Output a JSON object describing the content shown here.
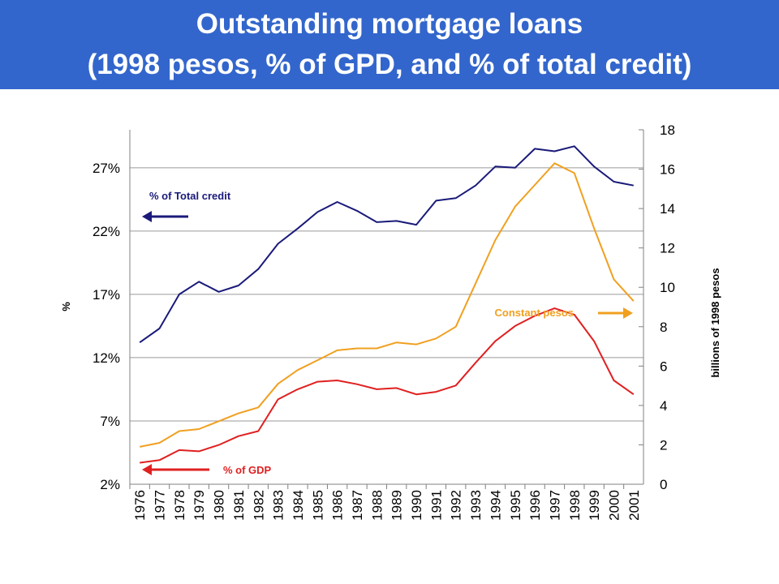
{
  "title": {
    "line1": "Outstanding mortgage loans",
    "line2": "(1998 pesos, % of GPD, and % of total credit)"
  },
  "chart_data": {
    "type": "line",
    "categories": [
      "1976",
      "1977",
      "1978",
      "1979",
      "1980",
      "1981",
      "1982",
      "1983",
      "1984",
      "1985",
      "1986",
      "1987",
      "1988",
      "1989",
      "1990",
      "1991",
      "1992",
      "1993",
      "1994",
      "1995",
      "1996",
      "1997",
      "1998",
      "1999",
      "2000",
      "2001"
    ],
    "y_left": {
      "label": "%",
      "range": [
        2,
        30
      ],
      "ticks": [
        2,
        7,
        12,
        17,
        22,
        27
      ],
      "tick_labels": [
        "2%",
        "7%",
        "12%",
        "17%",
        "22%",
        "27%"
      ]
    },
    "y_right": {
      "label": "billions of 1998 pesos",
      "range": [
        0,
        18
      ],
      "ticks": [
        0,
        2,
        4,
        6,
        8,
        10,
        12,
        14,
        16,
        18
      ],
      "tick_labels": [
        "0",
        "2",
        "4",
        "6",
        "8",
        "10",
        "12",
        "14",
        "16",
        "18"
      ]
    },
    "grid": true,
    "series": [
      {
        "name": "% of Total credit",
        "axis": "left",
        "color": "#1a1a7a",
        "values": [
          13.2,
          14.3,
          17.0,
          18.0,
          17.2,
          17.7,
          19.0,
          21.0,
          22.2,
          23.5,
          24.3,
          23.6,
          22.7,
          22.8,
          22.5,
          24.4,
          24.6,
          25.6,
          27.1,
          27.0,
          28.5,
          28.3,
          28.7,
          27.1,
          25.9,
          25.6
        ]
      },
      {
        "name": "Constant pesos",
        "axis": "right",
        "color": "#f0a020",
        "values": [
          1.9,
          2.1,
          2.7,
          2.8,
          3.2,
          3.6,
          3.9,
          5.1,
          5.8,
          6.3,
          6.8,
          6.9,
          6.9,
          7.2,
          7.1,
          7.4,
          8.0,
          10.2,
          12.4,
          14.1,
          15.2,
          16.3,
          15.8,
          13.0,
          10.4,
          9.3
        ]
      },
      {
        "name": "% of GDP",
        "axis": "left",
        "color": "#e02020",
        "values": [
          3.7,
          3.9,
          4.7,
          4.6,
          5.1,
          5.8,
          6.2,
          8.7,
          9.5,
          10.1,
          10.2,
          9.9,
          9.5,
          9.6,
          9.1,
          9.3,
          9.8,
          11.6,
          13.3,
          14.5,
          15.3,
          15.9,
          15.4,
          13.3,
          10.2,
          9.1
        ]
      }
    ],
    "annotations": [
      {
        "text": "% of Total credit",
        "color": "#1a1a7a",
        "arrow": "left"
      },
      {
        "text": "Constant  pesos",
        "color": "#f0a020",
        "arrow": "right"
      },
      {
        "text": "% of GDP",
        "color": "#e02020",
        "arrow": "left"
      }
    ]
  }
}
